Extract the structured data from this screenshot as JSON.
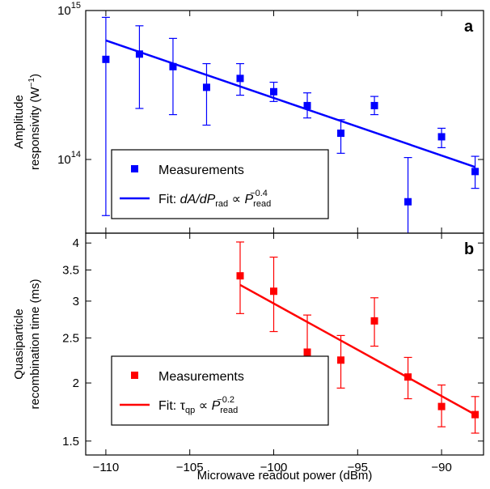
{
  "xlabel": "Microwave readout power (dBm)",
  "x_ticks": [
    -110,
    -105,
    -100,
    -95,
    -90
  ],
  "chart_data": [
    {
      "type": "scatter",
      "panel": "a",
      "ylabel_line1": "Amplitude",
      "ylabel_line2": "responsivity (W",
      "ylabel_sup": "−1",
      "ylabel_end": ")",
      "yscale": "log",
      "xlim": [
        -111.2,
        -87.5
      ],
      "ylim": [
        32000000000000.0,
        1000000000000000.0
      ],
      "y_ticks": [
        {
          "value": 100000000000000.0,
          "base": "10",
          "exp": "14"
        },
        {
          "value": 1000000000000000.0,
          "base": "10",
          "exp": "15"
        }
      ],
      "color": "#0000ff",
      "legend": {
        "marker_label": "Measurements",
        "fit_prefix": "Fit: ",
        "fit_lhs": "dA/dP",
        "fit_lhs_sub": "rad",
        "fit_prop": " ∝ ",
        "fit_rhs": "P",
        "fit_rhs_sub": "read",
        "fit_rhs_sup": "−0.4",
        "position": "lower-left"
      },
      "points": [
        {
          "x": -110,
          "y": 470000000000000.0,
          "lo": 42000000000000.0,
          "hi": 900000000000000.0
        },
        {
          "x": -108,
          "y": 510000000000000.0,
          "lo": 220000000000000.0,
          "hi": 790000000000000.0
        },
        {
          "x": -106,
          "y": 420000000000000.0,
          "lo": 200000000000000.0,
          "hi": 650000000000000.0
        },
        {
          "x": -104,
          "y": 305000000000000.0,
          "lo": 170000000000000.0,
          "hi": 440000000000000.0
        },
        {
          "x": -102,
          "y": 350000000000000.0,
          "lo": 270000000000000.0,
          "hi": 440000000000000.0
        },
        {
          "x": -100,
          "y": 285000000000000.0,
          "lo": 245000000000000.0,
          "hi": 330000000000000.0
        },
        {
          "x": -98,
          "y": 230000000000000.0,
          "lo": 190000000000000.0,
          "hi": 280000000000000.0
        },
        {
          "x": -96,
          "y": 150000000000000.0,
          "lo": 110000000000000.0,
          "hi": 185000000000000.0
        },
        {
          "x": -94,
          "y": 230000000000000.0,
          "lo": 200000000000000.0,
          "hi": 265000000000000.0
        },
        {
          "x": -92,
          "y": 52000000000000.0,
          "lo": 30000000000000.0,
          "hi": 103000000000000.0
        },
        {
          "x": -90,
          "y": 142000000000000.0,
          "lo": 120000000000000.0,
          "hi": 162000000000000.0
        },
        {
          "x": -88,
          "y": 83000000000000.0,
          "lo": 64000000000000.0,
          "hi": 105000000000000.0
        }
      ],
      "fit": {
        "x": [
          -110,
          -88
        ],
        "y": [
          630000000000000.0,
          89000000000000.0
        ]
      }
    },
    {
      "type": "scatter",
      "panel": "b",
      "ylabel_line1": "Quasiparticle",
      "ylabel_line2": "recombination time (ms)",
      "yscale": "log",
      "xlim": [
        -111.2,
        -87.5
      ],
      "ylim": [
        1.4,
        4.2
      ],
      "y_ticks": [
        {
          "value": 1.5,
          "label": "1.5"
        },
        {
          "value": 2,
          "label": "2"
        },
        {
          "value": 2.5,
          "label": "2.5"
        },
        {
          "value": 3,
          "label": "3"
        },
        {
          "value": 3.5,
          "label": "3.5"
        },
        {
          "value": 4,
          "label": "4"
        }
      ],
      "color": "#ff0000",
      "legend": {
        "marker_label": "Measurements",
        "fit_prefix": "Fit: ",
        "fit_lhs": "τ",
        "fit_lhs_sub": "qp",
        "fit_prop": " ∝ ",
        "fit_rhs": "P",
        "fit_rhs_sub": "read",
        "fit_rhs_sup": "−0.2",
        "position": "lower-left"
      },
      "points": [
        {
          "x": -102,
          "y": 3.4,
          "lo": 2.82,
          "hi": 4.02
        },
        {
          "x": -100,
          "y": 3.15,
          "lo": 2.58,
          "hi": 3.73
        },
        {
          "x": -98,
          "y": 2.33,
          "lo": 1.86,
          "hi": 2.8
        },
        {
          "x": -96,
          "y": 2.24,
          "lo": 1.95,
          "hi": 2.53
        },
        {
          "x": -94,
          "y": 2.72,
          "lo": 2.4,
          "hi": 3.05
        },
        {
          "x": -92,
          "y": 2.06,
          "lo": 1.85,
          "hi": 2.27
        },
        {
          "x": -90,
          "y": 1.78,
          "lo": 1.61,
          "hi": 1.98
        },
        {
          "x": -88,
          "y": 1.71,
          "lo": 1.56,
          "hi": 1.87
        }
      ],
      "fit": {
        "x": [
          -102,
          -88
        ],
        "y": [
          3.25,
          1.71
        ]
      }
    }
  ]
}
